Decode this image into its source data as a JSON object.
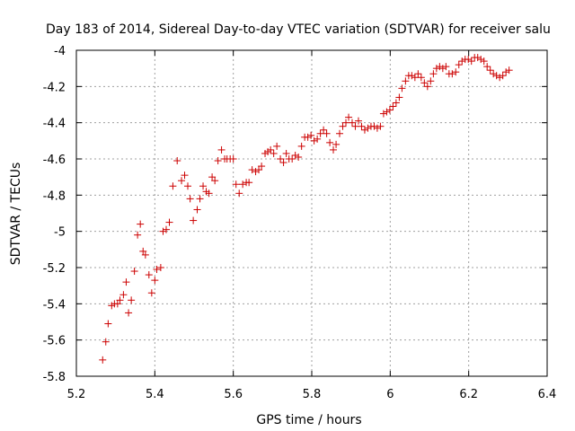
{
  "chart_data": {
    "type": "scatter",
    "title": "Day 183 of 2014, Sidereal Day-to-day VTEC variation (SDTVAR) for receiver salu",
    "xlabel": "GPS time / hours",
    "ylabel": "SDTVAR / TECUs",
    "xlim": [
      5.2,
      6.4
    ],
    "ylim": [
      -5.8,
      -4.0
    ],
    "xticks": [
      5.2,
      5.4,
      5.6,
      5.8,
      6.0,
      6.2,
      6.4
    ],
    "yticks": [
      -5.8,
      -5.6,
      -5.4,
      -5.2,
      -5.0,
      -4.8,
      -4.6,
      -4.4,
      -4.2,
      -4.0
    ],
    "xtick_labels": [
      "5.2",
      "5.4",
      "5.6",
      "5.8",
      "6",
      "6.2",
      "6.4"
    ],
    "ytick_labels": [
      "-5.8",
      "-5.6",
      "-5.4",
      "-5.2",
      "-5",
      "-4.8",
      "-4.6",
      "-4.4",
      "-4.2",
      "-4"
    ],
    "grid": true,
    "marker": "+",
    "colors": {
      "points": "#cc0000",
      "grid": "#a0a0a0",
      "axis": "#000000"
    },
    "series": [
      {
        "name": "SDTVAR",
        "x": [
          5.267,
          5.275,
          5.281,
          5.29,
          5.297,
          5.305,
          5.311,
          5.32,
          5.327,
          5.333,
          5.34,
          5.348,
          5.356,
          5.363,
          5.37,
          5.376,
          5.385,
          5.392,
          5.4,
          5.405,
          5.415,
          5.421,
          5.429,
          5.437,
          5.446,
          5.457,
          5.468,
          5.476,
          5.484,
          5.49,
          5.498,
          5.508,
          5.515,
          5.523,
          5.531,
          5.538,
          5.546,
          5.553,
          5.561,
          5.57,
          5.578,
          5.584,
          5.592,
          5.6,
          5.607,
          5.615,
          5.624,
          5.633,
          5.64,
          5.648,
          5.657,
          5.665,
          5.672,
          5.681,
          5.688,
          5.695,
          5.703,
          5.711,
          5.72,
          5.728,
          5.735,
          5.742,
          5.75,
          5.758,
          5.766,
          5.774,
          5.782,
          5.79,
          5.798,
          5.806,
          5.814,
          5.822,
          5.83,
          5.838,
          5.846,
          5.855,
          5.862,
          5.871,
          5.879,
          5.887,
          5.894,
          5.903,
          5.911,
          5.919,
          5.927,
          5.935,
          5.943,
          5.951,
          5.959,
          5.967,
          5.975,
          5.983,
          5.991,
          5.999,
          6.007,
          6.015,
          6.023,
          6.03,
          6.039,
          6.047,
          6.055,
          6.063,
          6.071,
          6.079,
          6.087,
          6.095,
          6.103,
          6.11,
          6.118,
          6.126,
          6.134,
          6.142,
          6.15,
          6.158,
          6.167,
          6.175,
          6.183,
          6.191,
          6.199,
          6.207,
          6.215,
          6.223,
          6.231,
          6.239,
          6.247,
          6.255,
          6.263,
          6.271,
          6.279,
          6.287,
          6.295,
          6.303
        ],
        "y": [
          -5.71,
          -5.61,
          -5.51,
          -5.41,
          -5.4,
          -5.4,
          -5.38,
          -5.35,
          -5.28,
          -5.45,
          -5.38,
          -5.22,
          -5.02,
          -4.96,
          -5.11,
          -5.13,
          -5.24,
          -5.34,
          -5.27,
          -5.21,
          -5.2,
          -5.0,
          -4.99,
          -4.95,
          -4.75,
          -4.61,
          -4.72,
          -4.69,
          -4.75,
          -4.82,
          -4.94,
          -4.88,
          -4.82,
          -4.75,
          -4.78,
          -4.79,
          -4.7,
          -4.72,
          -4.61,
          -4.55,
          -4.6,
          -4.6,
          -4.6,
          -4.6,
          -4.74,
          -4.79,
          -4.74,
          -4.73,
          -4.73,
          -4.66,
          -4.67,
          -4.66,
          -4.64,
          -4.57,
          -4.56,
          -4.55,
          -4.57,
          -4.53,
          -4.6,
          -4.62,
          -4.57,
          -4.6,
          -4.6,
          -4.58,
          -4.59,
          -4.53,
          -4.48,
          -4.48,
          -4.47,
          -4.5,
          -4.49,
          -4.46,
          -4.44,
          -4.46,
          -4.51,
          -4.55,
          -4.52,
          -4.46,
          -4.42,
          -4.4,
          -4.37,
          -4.4,
          -4.42,
          -4.39,
          -4.42,
          -4.44,
          -4.43,
          -4.42,
          -4.42,
          -4.43,
          -4.42,
          -4.35,
          -4.34,
          -4.33,
          -4.31,
          -4.29,
          -4.26,
          -4.21,
          -4.17,
          -4.14,
          -4.14,
          -4.15,
          -4.13,
          -4.15,
          -4.18,
          -4.2,
          -4.17,
          -4.13,
          -4.1,
          -4.09,
          -4.1,
          -4.09,
          -4.13,
          -4.13,
          -4.12,
          -4.08,
          -4.06,
          -4.05,
          -4.05,
          -4.06,
          -4.04,
          -4.04,
          -4.05,
          -4.06,
          -4.09,
          -4.11,
          -4.13,
          -4.14,
          -4.15,
          -4.14,
          -4.12,
          -4.11
        ]
      }
    ]
  }
}
